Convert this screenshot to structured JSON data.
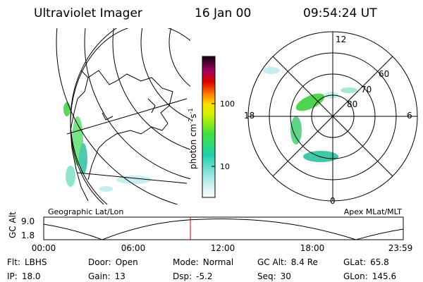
{
  "header": {
    "title": "Ultraviolet Imager",
    "date": "16 Jan 00",
    "time": "09:54:24 UT"
  },
  "colorbar": {
    "label": [
      "photon cm",
      "-2",
      "s",
      "-1"
    ],
    "ticks": [
      "100",
      "10"
    ]
  },
  "polar": {
    "mlt_labels": [
      "12",
      "18",
      "6",
      "0"
    ],
    "lat_labels": [
      "80",
      "70",
      "60"
    ]
  },
  "panel_labels": {
    "left": "Geographic Lat/Lon",
    "right": "Apex MLat/MLT"
  },
  "altitude_plot": {
    "axis_label": "GC Alt",
    "y_labels": [
      "9.0",
      "1.8"
    ],
    "x_labels": [
      "00:00",
      "06:00",
      "12:00",
      "18:00",
      "23:59"
    ]
  },
  "status": {
    "rows": [
      [
        [
          "Flt:",
          "LBHS"
        ],
        [
          "Door:",
          "Open"
        ],
        [
          "Mode:",
          "Normal"
        ],
        [
          "GC Alt:",
          "8.4 Re"
        ],
        [
          "GLat:",
          "65.8"
        ]
      ],
      [
        [
          "IP:",
          "18.0"
        ],
        [
          "Gain:",
          "13"
        ],
        [
          "Dsp:",
          "-5.2"
        ],
        [
          "Seq:",
          "30"
        ],
        [
          "GLon:",
          "145.6"
        ]
      ]
    ]
  }
}
